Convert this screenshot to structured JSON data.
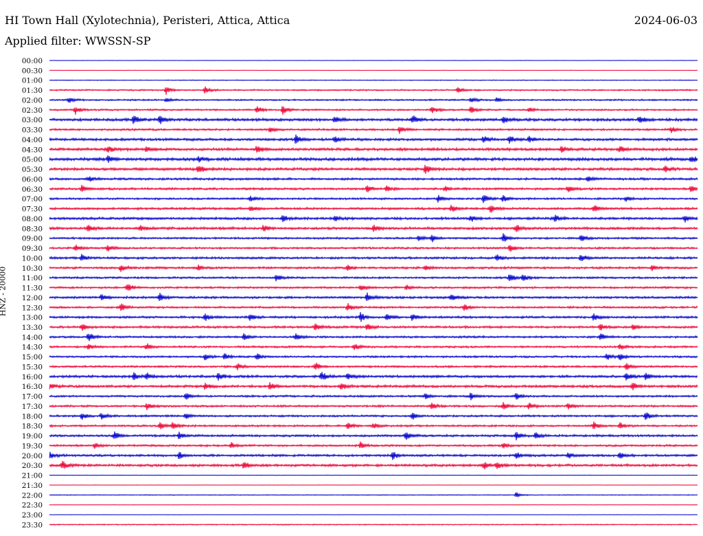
{
  "header": {
    "station": "HI Town Hall (Xylotechnia), Peristeri, Attica, Attica",
    "date": "2024-06-03",
    "filter": "Applied filter: WWSSN-SP"
  },
  "chart_data": {
    "type": "line",
    "title": "HI Town Hall (Xylotechnia), Peristeri, Attica, Attica",
    "ylabel": "HNZ - 20000",
    "colors": [
      "#0000cc",
      "#ee0033"
    ],
    "rows": [
      "00:00",
      "00:30",
      "01:00",
      "01:30",
      "02:00",
      "02:30",
      "03:00",
      "03:30",
      "04:00",
      "04:30",
      "05:00",
      "05:30",
      "06:00",
      "06:30",
      "07:00",
      "07:30",
      "08:00",
      "08:30",
      "09:00",
      "09:30",
      "10:00",
      "10:30",
      "11:00",
      "11:30",
      "12:00",
      "12:30",
      "13:00",
      "13:30",
      "14:00",
      "14:30",
      "15:00",
      "15:30",
      "16:00",
      "16:30",
      "17:00",
      "17:30",
      "18:00",
      "18:30",
      "19:00",
      "19:30",
      "20:00",
      "20:30",
      "21:00",
      "21:30",
      "22:00",
      "22:30",
      "23:00",
      "23:30"
    ],
    "noise": [
      0.3,
      0.3,
      0.6,
      1.2,
      1.3,
      1.4,
      2.2,
      1.6,
      2.0,
      2.2,
      2.4,
      2.2,
      1.8,
      1.8,
      1.6,
      1.8,
      2.0,
      2.0,
      1.6,
      1.6,
      1.8,
      1.8,
      1.6,
      1.6,
      1.8,
      1.6,
      1.8,
      1.8,
      1.6,
      1.6,
      1.6,
      1.6,
      2.0,
      2.0,
      1.6,
      1.6,
      1.6,
      1.6,
      1.8,
      1.6,
      1.8,
      2.0,
      0.4,
      0.3,
      0.6,
      0.3,
      0.3,
      0.8
    ],
    "events": [
      [],
      [],
      [],
      [
        [
          0.18,
          6
        ],
        [
          0.24,
          5
        ],
        [
          0.63,
          5
        ]
      ],
      [
        [
          0.03,
          4
        ],
        [
          0.18,
          3
        ],
        [
          0.65,
          4
        ],
        [
          0.69,
          3
        ]
      ],
      [
        [
          0.04,
          6
        ],
        [
          0.32,
          6
        ],
        [
          0.36,
          7
        ],
        [
          0.59,
          6
        ],
        [
          0.65,
          5
        ],
        [
          0.74,
          4
        ]
      ],
      [
        [
          0.13,
          6
        ],
        [
          0.17,
          7
        ],
        [
          0.44,
          5
        ],
        [
          0.56,
          6
        ],
        [
          0.7,
          5
        ],
        [
          0.91,
          6
        ]
      ],
      [
        [
          0.34,
          4
        ],
        [
          0.54,
          5
        ],
        [
          0.96,
          4
        ]
      ],
      [
        [
          0.38,
          6
        ],
        [
          0.44,
          5
        ],
        [
          0.67,
          5
        ],
        [
          0.71,
          6
        ],
        [
          0.74,
          5
        ]
      ],
      [
        [
          0.09,
          5
        ],
        [
          0.15,
          4
        ],
        [
          0.32,
          6
        ],
        [
          0.79,
          5
        ],
        [
          0.88,
          4
        ]
      ],
      [
        [
          0.09,
          4
        ],
        [
          0.23,
          4
        ],
        [
          0.99,
          5
        ]
      ],
      [
        [
          0.23,
          6
        ],
        [
          0.58,
          7
        ],
        [
          0.95,
          5
        ]
      ],
      [
        [
          0.06,
          4
        ],
        [
          0.83,
          5
        ]
      ],
      [
        [
          0.05,
          5
        ],
        [
          0.49,
          5
        ],
        [
          0.52,
          4
        ],
        [
          0.61,
          4
        ],
        [
          0.8,
          5
        ],
        [
          0.99,
          5
        ]
      ],
      [
        [
          0.31,
          4
        ],
        [
          0.6,
          5
        ],
        [
          0.67,
          6
        ],
        [
          0.7,
          5
        ],
        [
          0.89,
          4
        ]
      ],
      [
        [
          0.31,
          4
        ],
        [
          0.62,
          5
        ],
        [
          0.68,
          7
        ],
        [
          0.84,
          6
        ]
      ],
      [
        [
          0.36,
          4
        ],
        [
          0.44,
          4
        ],
        [
          0.65,
          5
        ],
        [
          0.78,
          5
        ],
        [
          0.98,
          5
        ]
      ],
      [
        [
          0.06,
          6
        ],
        [
          0.14,
          5
        ],
        [
          0.33,
          5
        ],
        [
          0.5,
          5
        ],
        [
          0.72,
          5
        ]
      ],
      [
        [
          0.57,
          4
        ],
        [
          0.59,
          5
        ],
        [
          0.7,
          7
        ],
        [
          0.82,
          6
        ]
      ],
      [
        [
          0.04,
          5
        ],
        [
          0.09,
          5
        ],
        [
          0.71,
          6
        ]
      ],
      [
        [
          0.05,
          5
        ],
        [
          0.69,
          5
        ],
        [
          0.82,
          6
        ]
      ],
      [
        [
          0.11,
          5
        ],
        [
          0.23,
          4
        ],
        [
          0.46,
          4
        ],
        [
          0.58,
          4
        ],
        [
          0.93,
          4
        ]
      ],
      [
        [
          0.35,
          5
        ],
        [
          0.71,
          7
        ],
        [
          0.73,
          6
        ]
      ],
      [
        [
          0.12,
          6
        ],
        [
          0.48,
          5
        ],
        [
          0.55,
          4
        ]
      ],
      [
        [
          0.08,
          5
        ],
        [
          0.17,
          6
        ],
        [
          0.49,
          6
        ],
        [
          0.62,
          5
        ]
      ],
      [
        [
          0.11,
          6
        ],
        [
          0.46,
          6
        ],
        [
          0.64,
          5
        ]
      ],
      [
        [
          0.24,
          5
        ],
        [
          0.31,
          5
        ],
        [
          0.48,
          7
        ],
        [
          0.52,
          5
        ],
        [
          0.56,
          5
        ],
        [
          0.84,
          5
        ]
      ],
      [
        [
          0.05,
          5
        ],
        [
          0.41,
          5
        ],
        [
          0.49,
          5
        ],
        [
          0.85,
          5
        ],
        [
          0.9,
          4
        ]
      ],
      [
        [
          0.06,
          7
        ],
        [
          0.3,
          5
        ],
        [
          0.38,
          5
        ],
        [
          0.85,
          6
        ]
      ],
      [
        [
          0.06,
          4
        ],
        [
          0.15,
          5
        ],
        [
          0.47,
          5
        ],
        [
          0.88,
          4
        ]
      ],
      [
        [
          0.24,
          5
        ],
        [
          0.27,
          5
        ],
        [
          0.32,
          5
        ],
        [
          0.86,
          6
        ],
        [
          0.88,
          5
        ]
      ],
      [
        [
          0.29,
          5
        ],
        [
          0.41,
          6
        ],
        [
          0.89,
          5
        ]
      ],
      [
        [
          0.13,
          6
        ],
        [
          0.15,
          5
        ],
        [
          0.26,
          6
        ],
        [
          0.42,
          7
        ],
        [
          0.46,
          5
        ],
        [
          0.89,
          5
        ],
        [
          0.92,
          5
        ]
      ],
      [
        [
          0.0,
          5
        ],
        [
          0.24,
          5
        ],
        [
          0.34,
          5
        ],
        [
          0.45,
          5
        ],
        [
          0.9,
          5
        ]
      ],
      [
        [
          0.21,
          6
        ],
        [
          0.58,
          5
        ],
        [
          0.65,
          5
        ],
        [
          0.72,
          6
        ]
      ],
      [
        [
          0.15,
          5
        ],
        [
          0.59,
          5
        ],
        [
          0.7,
          5
        ],
        [
          0.74,
          5
        ],
        [
          0.8,
          5
        ]
      ],
      [
        [
          0.05,
          5
        ],
        [
          0.08,
          5
        ],
        [
          0.21,
          4
        ],
        [
          0.56,
          5
        ],
        [
          0.92,
          6
        ]
      ],
      [
        [
          0.17,
          6
        ],
        [
          0.19,
          5
        ],
        [
          0.46,
          5
        ],
        [
          0.5,
          4
        ],
        [
          0.84,
          5
        ],
        [
          0.88,
          5
        ]
      ],
      [
        [
          0.1,
          6
        ],
        [
          0.2,
          5
        ],
        [
          0.55,
          6
        ],
        [
          0.72,
          6
        ],
        [
          0.75,
          5
        ]
      ],
      [
        [
          0.07,
          4
        ],
        [
          0.28,
          5
        ],
        [
          0.48,
          5
        ],
        [
          0.7,
          4
        ]
      ],
      [
        [
          0.0,
          5
        ],
        [
          0.2,
          5
        ],
        [
          0.53,
          6
        ],
        [
          0.72,
          5
        ],
        [
          0.8,
          4
        ],
        [
          0.88,
          5
        ]
      ],
      [
        [
          0.02,
          6
        ],
        [
          0.3,
          6
        ],
        [
          0.67,
          6
        ],
        [
          0.69,
          5
        ]
      ],
      [],
      [],
      [
        [
          0.72,
          4
        ]
      ],
      [],
      [],
      []
    ]
  }
}
